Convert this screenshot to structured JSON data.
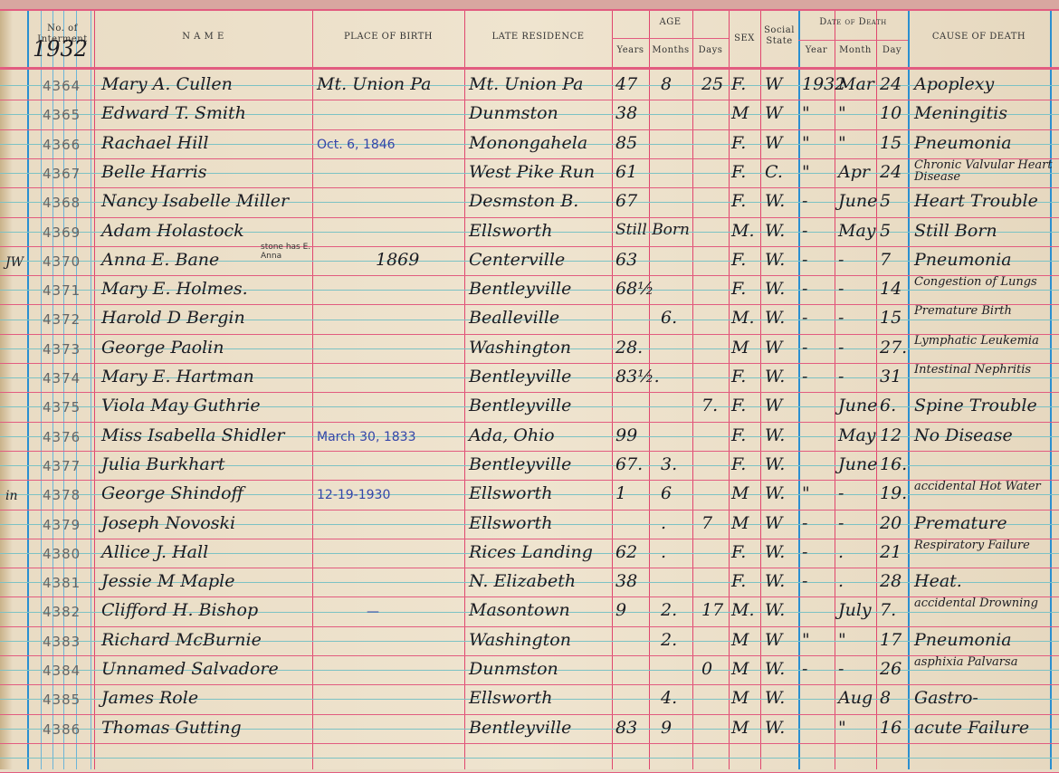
{
  "headers": {
    "no_of_interment": "No. of Interment",
    "name": "N A M E",
    "place_of_birth": "PLACE OF BIRTH",
    "late_residence": "LATE RESIDENCE",
    "age": "AGE",
    "years": "Years",
    "months": "Months",
    "days": "Days",
    "sex": "SEX",
    "social_state": "Social State",
    "date_of_death": "Date of Death",
    "year": "Year",
    "month": "Month",
    "day": "Day",
    "cause_of_death": "CAUSE OF DEATH"
  },
  "year_mark": "1932",
  "rows": [
    {
      "no": "4364",
      "name": "Mary A. Cullen",
      "birth": "Mt. Union Pa",
      "residence": "Mt. Union Pa",
      "years": "47",
      "months": "8",
      "days": "25",
      "sex": "F.",
      "state": "W",
      "year": "1932",
      "month": "Mar",
      "day": "24",
      "cause": "Apoplexy"
    },
    {
      "no": "4365",
      "name": "Edward T. Smith",
      "birth": "",
      "residence": "Dunmston",
      "years": "38",
      "months": "",
      "days": "",
      "sex": "M",
      "state": "W",
      "year": "\"",
      "month": "\"",
      "day": "10",
      "cause": "Meningitis"
    },
    {
      "no": "4366",
      "name": "Rachael Hill",
      "birth": "Oct. 6, 1846",
      "residence": "Monongahela",
      "years": "85",
      "months": "",
      "days": "",
      "sex": "F.",
      "state": "W",
      "year": "\"",
      "month": "\"",
      "day": "15",
      "cause": "Pneumonia"
    },
    {
      "no": "4367",
      "name": "Belle Harris",
      "birth": "",
      "residence": "West Pike Run",
      "years": "61",
      "months": "",
      "days": "",
      "sex": "F.",
      "state": "C.",
      "year": "\"",
      "month": "Apr",
      "day": "24",
      "cause": "Chronic Valvular Heart Disease"
    },
    {
      "no": "4368",
      "name": "Nancy Isabelle Miller",
      "birth": "",
      "residence": "Desmston B.",
      "years": "67",
      "months": "",
      "days": "",
      "sex": "F.",
      "state": "W.",
      "year": "-",
      "month": "June",
      "day": "5",
      "cause": "Heart Trouble"
    },
    {
      "no": "4369",
      "name": "Adam Holastock",
      "birth": "",
      "residence": "Ellsworth",
      "years": "Still Born",
      "months": "",
      "days": "",
      "sex": "M.",
      "state": "W.",
      "year": "-",
      "month": "May",
      "day": "5",
      "cause": "Still Born"
    },
    {
      "no": "4370",
      "name": "Anna E. Bane",
      "birth": "1869",
      "residence": "Centerville",
      "years": "63",
      "months": "",
      "days": "",
      "sex": "F.",
      "state": "W.",
      "year": "-",
      "month": "-",
      "day": "7",
      "cause": "Pneumonia",
      "margin": "JW",
      "note": "stone has E. Anna"
    },
    {
      "no": "4371",
      "name": "Mary E. Holmes.",
      "birth": "",
      "residence": "Bentleyville",
      "years": "68½",
      "months": "",
      "days": "",
      "sex": "F.",
      "state": "W.",
      "year": "-",
      "month": "-",
      "day": "14",
      "cause": "Congestion of Lungs"
    },
    {
      "no": "4372",
      "name": "Harold D Bergin",
      "birth": "",
      "residence": "Bealleville",
      "years": "",
      "months": "6.",
      "days": "",
      "sex": "M.",
      "state": "W.",
      "year": "-",
      "month": "-",
      "day": "15",
      "cause": "Premature Birth"
    },
    {
      "no": "4373",
      "name": "George Paolin",
      "birth": "",
      "residence": "Washington",
      "years": "28.",
      "months": "",
      "days": "",
      "sex": "M",
      "state": "W",
      "year": "-",
      "month": "-",
      "day": "27.",
      "cause": "Lymphatic Leukemia"
    },
    {
      "no": "4374",
      "name": "Mary E. Hartman",
      "birth": "",
      "residence": "Bentleyville",
      "years": "83½.",
      "months": "",
      "days": "",
      "sex": "F.",
      "state": "W.",
      "year": "-",
      "month": "-",
      "day": "31",
      "cause": "Intestinal Nephritis"
    },
    {
      "no": "4375",
      "name": "Viola May Guthrie",
      "birth": "",
      "residence": "Bentleyville",
      "years": "",
      "months": "",
      "days": "7.",
      "sex": "F.",
      "state": "W",
      "year": "",
      "month": "June",
      "day": "6.",
      "cause": "Spine Trouble"
    },
    {
      "no": "4376",
      "name": "Miss Isabella Shidler",
      "birth": "March 30, 1833",
      "residence": "Ada, Ohio",
      "years": "99",
      "months": "",
      "days": "",
      "sex": "F.",
      "state": "W.",
      "year": "",
      "month": "May",
      "day": "12",
      "cause": "No Disease"
    },
    {
      "no": "4377",
      "name": "Julia Burkhart",
      "birth": "",
      "residence": "Bentleyville",
      "years": "67.",
      "months": "3.",
      "days": "",
      "sex": "F.",
      "state": "W.",
      "year": "",
      "month": "June",
      "day": "16.",
      "cause": ""
    },
    {
      "no": "4378",
      "name": "George Shindoff",
      "birth": "12-19-1930",
      "residence": "Ellsworth",
      "years": "1",
      "months": "6",
      "days": "",
      "sex": "M",
      "state": "W.",
      "year": "\"",
      "month": "-",
      "day": "19.",
      "cause": "accidental Hot Water",
      "margin": "in"
    },
    {
      "no": "4379",
      "name": "Joseph Novoski",
      "birth": "",
      "residence": "Ellsworth",
      "years": "",
      "months": ".",
      "days": "7",
      "sex": "M",
      "state": "W",
      "year": "-",
      "month": "-",
      "day": "20",
      "cause": "Premature"
    },
    {
      "no": "4380",
      "name": "Allice J. Hall",
      "birth": "",
      "residence": "Rices Landing",
      "years": "62",
      "months": ".",
      "days": "",
      "sex": "F.",
      "state": "W.",
      "year": "-",
      "month": ".",
      "day": "21",
      "cause": "Respiratory Failure"
    },
    {
      "no": "4381",
      "name": "Jessie M Maple",
      "birth": "",
      "residence": "N. Elizabeth",
      "years": "38",
      "months": "",
      "days": "",
      "sex": "F.",
      "state": "W.",
      "year": "-",
      "month": ".",
      "day": "28",
      "cause": "Heat."
    },
    {
      "no": "4382",
      "name": "Clifford H. Bishop",
      "birth": "—",
      "residence": "Masontown",
      "years": "9",
      "months": "2.",
      "days": "17",
      "sex": "M.",
      "state": "W.",
      "year": "",
      "month": "July",
      "day": "7.",
      "cause": "accidental Drowning"
    },
    {
      "no": "4383",
      "name": "Richard McBurnie",
      "birth": "",
      "residence": "Washington",
      "years": "",
      "months": "2.",
      "days": "",
      "sex": "M",
      "state": "W",
      "year": "\"",
      "month": "\"",
      "day": "17",
      "cause": "Pneumonia"
    },
    {
      "no": "4384",
      "name": "Unnamed Salvadore",
      "birth": "",
      "residence": "Dunmston",
      "years": "",
      "months": "",
      "days": "0",
      "sex": "M",
      "state": "W.",
      "year": "-",
      "month": "-",
      "day": "26",
      "cause": "asphixia Palvarsa"
    },
    {
      "no": "4385",
      "name": "James Role",
      "birth": "",
      "residence": "Ellsworth",
      "years": "",
      "months": "4.",
      "days": "",
      "sex": "M",
      "state": "W.",
      "year": "",
      "month": "Aug",
      "day": "8",
      "cause": "Gastro-"
    },
    {
      "no": "4386",
      "name": "Thomas Gutting",
      "birth": "",
      "residence": "Bentleyville",
      "years": "83",
      "months": "9",
      "days": "",
      "sex": "M",
      "state": "W.",
      "year": "",
      "month": "\"",
      "day": "16",
      "cause": "acute Failure"
    }
  ]
}
